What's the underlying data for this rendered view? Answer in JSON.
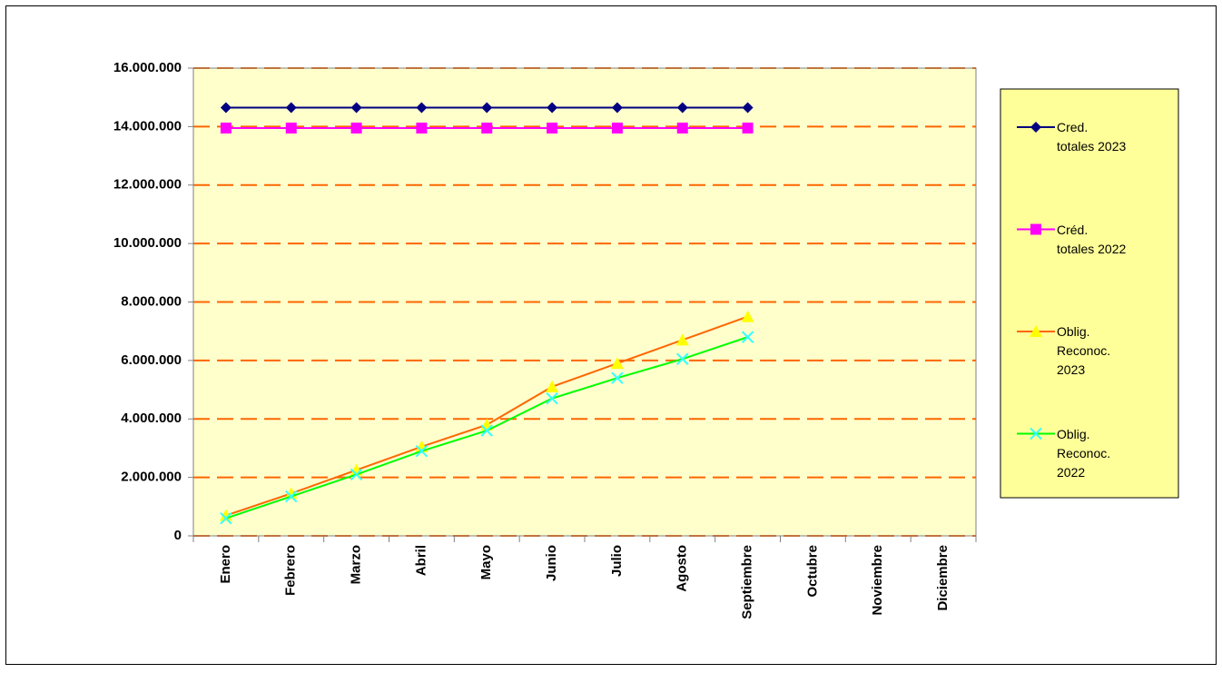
{
  "chart_data": {
    "type": "line",
    "categories": [
      "Enero",
      "Febrero",
      "Marzo",
      "Abril",
      "Mayo",
      "Junio",
      "Julio",
      "Agosto",
      "Septiembre",
      "Octubre",
      "Noviembre",
      "Diciembre"
    ],
    "series": [
      {
        "name": "Cred.\ntotales 2023",
        "color": "#000080",
        "marker": "diamond",
        "marker_color": "#000080",
        "values": [
          14650000,
          14650000,
          14650000,
          14650000,
          14650000,
          14650000,
          14650000,
          14650000,
          14650000,
          null,
          null,
          null
        ]
      },
      {
        "name": "Créd.\ntotales 2022",
        "color": "#ff00ff",
        "marker": "square",
        "marker_color": "#ff00ff",
        "values": [
          13950000,
          13950000,
          13950000,
          13950000,
          13950000,
          13950000,
          13950000,
          13950000,
          13950000,
          null,
          null,
          null
        ]
      },
      {
        "name": "Oblig.\nReconoc.\n2023",
        "color": "#ff6600",
        "marker": "triangle",
        "marker_color": "#ffff00",
        "values": [
          700000,
          1450000,
          2250000,
          3050000,
          3800000,
          5100000,
          5900000,
          6700000,
          7500000,
          null,
          null,
          null
        ]
      },
      {
        "name": "Oblig.\nReconoc.\n2022",
        "color": "#00ff00",
        "marker": "x",
        "marker_color": "#33ffff",
        "values": [
          600000,
          1350000,
          2100000,
          2900000,
          3600000,
          4700000,
          5400000,
          6050000,
          6800000,
          null,
          null,
          null
        ]
      }
    ],
    "ylim": [
      0,
      16000000
    ],
    "yticks": [
      0,
      {
        "value": 2000000,
        "label": "2.000.000"
      },
      {
        "value": 4000000,
        "label": "4.000.000"
      },
      {
        "value": 6000000,
        "label": "6.000.000"
      },
      {
        "value": 8000000,
        "label": "8.000.000"
      },
      {
        "value": 10000000,
        "label": "10.000.000"
      },
      {
        "value": 12000000,
        "label": "12.000.000"
      },
      {
        "value": 14000000,
        "label": "14.000.000"
      },
      {
        "value": 16000000,
        "label": "16.000.000"
      }
    ],
    "grid": true,
    "grid_color": "#ff6600",
    "plot_background": "#ffffcc",
    "legend": "right",
    "legend_background": "#ffff99"
  }
}
